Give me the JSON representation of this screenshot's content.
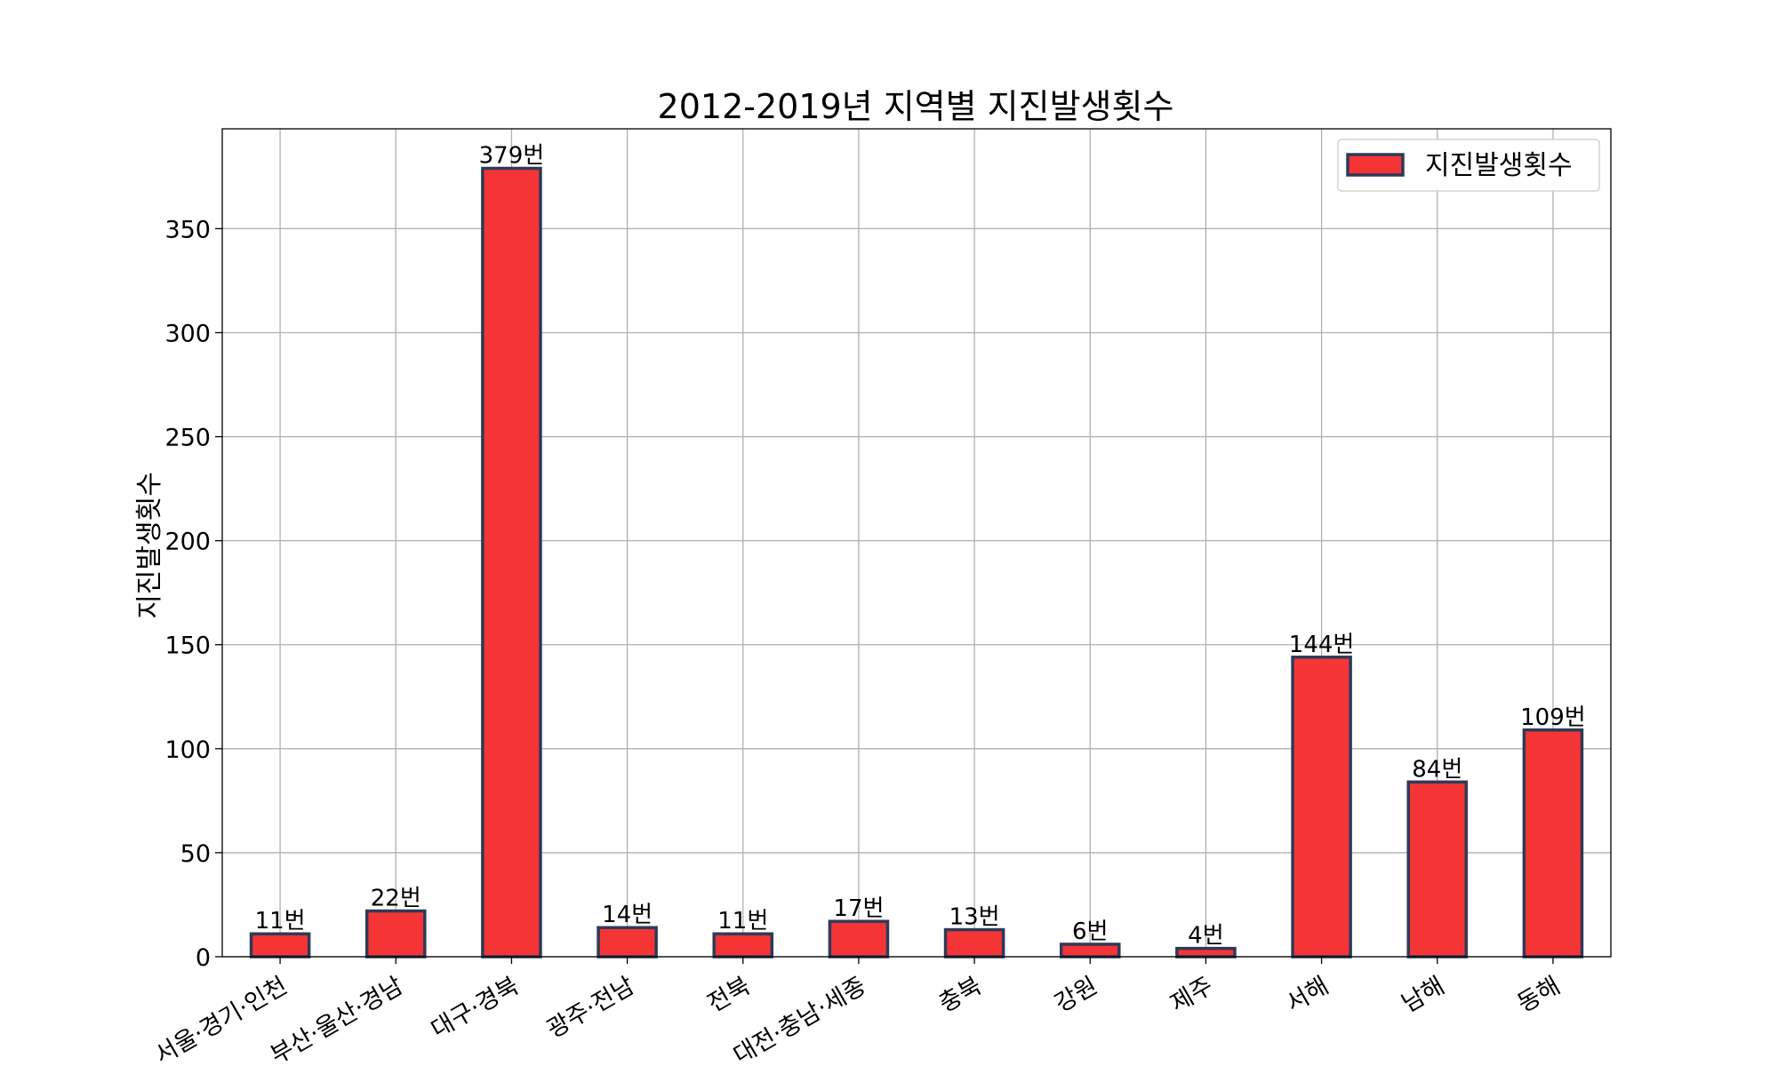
{
  "chart_data": {
    "type": "bar",
    "title": "2012-2019년 지역별 지진발생횟수",
    "xlabel": "",
    "ylabel": "지진발생횟수",
    "categories": [
      "서울·경기·인천",
      "부산·울산·경남",
      "대구·경북",
      "광주·전남",
      "전북",
      "대전·충남·세종",
      "충북",
      "강원",
      "제주",
      "서해",
      "남해",
      "동해"
    ],
    "series": [
      {
        "name": "지진발생횟수",
        "values": [
          11,
          22,
          379,
          14,
          11,
          17,
          13,
          6,
          4,
          144,
          84,
          109
        ]
      }
    ],
    "data_labels": [
      "11번",
      "22번",
      "379번",
      "14번",
      "11번",
      "17번",
      "13번",
      "6번",
      "4번",
      "144번",
      "84번",
      "109번"
    ],
    "ylim": [
      0,
      398
    ],
    "yticks": [
      0,
      50,
      100,
      150,
      200,
      250,
      300,
      350
    ],
    "grid": true,
    "legend_position": "top-right",
    "colors": {
      "bar_fill": "#f53535",
      "bar_edge": "#2e3a59"
    }
  }
}
